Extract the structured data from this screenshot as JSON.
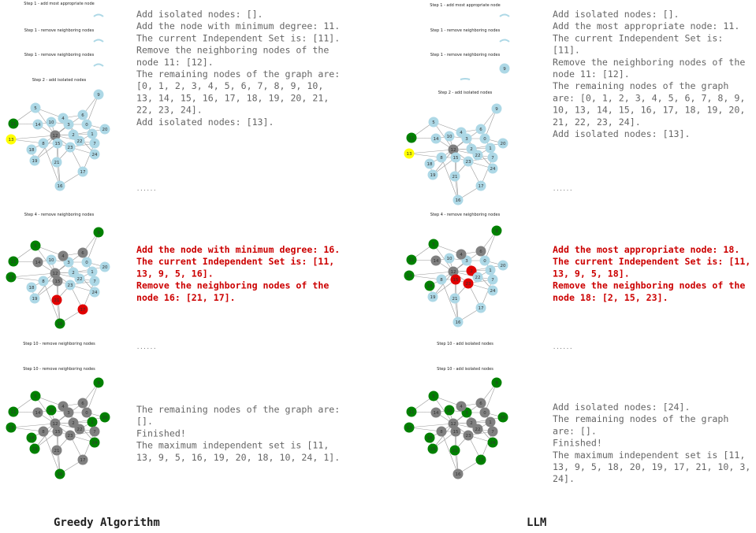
{
  "graph": {
    "node_labels": [
      0,
      1,
      2,
      3,
      4,
      5,
      6,
      7,
      8,
      9,
      10,
      11,
      12,
      13,
      14,
      15,
      16,
      17,
      18,
      19,
      20,
      21,
      22,
      23,
      24
    ]
  },
  "columns": [
    {
      "caption": "Greedy Algorithm",
      "step_titles": [
        "Step 1 - add most appropriate node",
        "Step 1 - remove neighboring nodes",
        "Step 1 - remove neighboring nodes",
        "Step 2 - add isolated nodes",
        "Step 4 - remove neighboring nodes",
        "Step 10 - remove neighboring nodes",
        "Step 10 - remove neighboring nodes"
      ],
      "blocks": [
        [
          "Add isolated nodes: [].",
          "Add the node with minimum degree: 11.",
          "The current Independent Set is: [11].",
          "Remove the neighboring nodes of the",
          "node 11: [12].",
          "The remaining nodes of the graph are:",
          "[0, 1, 2, 3, 4, 5, 6, 7, 8, 9, 10,",
          "13, 14, 15, 16, 17, 18, 19, 20, 21,",
          "22, 23, 24].",
          "Add isolated nodes: [13]."
        ],
        [
          "Add the node with minimum degree: 16.",
          "The current Independent Set is: [11,",
          "13, 9, 5, 16].",
          "Remove the neighboring nodes of the",
          "node 16: [21, 17]."
        ],
        [
          "The remaining nodes of the graph are:",
          "[].",
          "Finished!",
          "The maximum independent set is [11,",
          "13, 9, 5, 16, 19, 20, 18, 10, 24, 1]."
        ]
      ],
      "ellipses": [
        "......",
        "......"
      ]
    },
    {
      "caption": "LLM",
      "step_titles": [
        "Step 1 - add most appropriate node",
        "Step 1 - remove neighboring nodes",
        "Step 1 - remove neighboring nodes",
        "Step 2 - add isolated nodes",
        "Step 4 - remove neighboring nodes",
        "Step 10 - add isolated nodes",
        "Step 10 - add isolated nodes"
      ],
      "blocks": [
        [
          "Add isolated nodes: [].",
          "Add the most appropriate node: 11.",
          "The current Independent Set is:",
          "[11].",
          "Remove the neighboring nodes of the",
          "node 11: [12].",
          "The remaining nodes of the graph",
          "are: [0, 1, 2, 3, 4, 5, 6, 7, 8, 9,",
          "10, 13, 14, 15, 16, 17, 18, 19, 20,",
          "21, 22, 23, 24].",
          "Add isolated nodes: [13]."
        ],
        [
          "Add the most appropriate node: 18.",
          "The current Independent Set is: [11,",
          "13, 9, 5, 18].",
          "Remove the neighboring nodes of the",
          "node 18: [2, 15, 23]."
        ],
        [
          "Add isolated nodes: [24].",
          "The remaining nodes of the graph",
          "are: [].",
          "Finished!",
          "The maximum independent set is [11,",
          "13, 9, 5, 18, 20, 19, 17, 21, 10, 3,",
          "24]."
        ]
      ],
      "ellipses": [
        "......",
        "......"
      ]
    }
  ]
}
